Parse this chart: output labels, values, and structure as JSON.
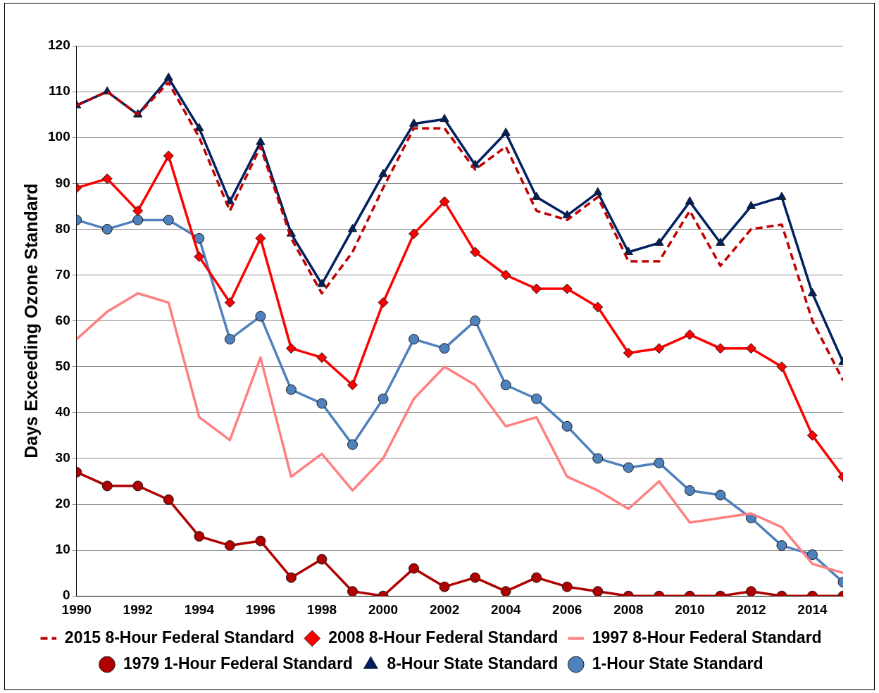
{
  "chart_data": {
    "type": "line",
    "ylabel": "Days Exceeding Ozone Standard",
    "x": [
      1990,
      1991,
      1992,
      1993,
      1994,
      1995,
      1996,
      1997,
      1998,
      1999,
      2000,
      2001,
      2002,
      2003,
      2004,
      2005,
      2006,
      2007,
      2008,
      2009,
      2010,
      2011,
      2012,
      2013,
      2014,
      2015
    ],
    "xlim": [
      1990,
      2015
    ],
    "xticks": [
      1990,
      1992,
      1994,
      1996,
      1998,
      2000,
      2002,
      2004,
      2006,
      2008,
      2010,
      2012,
      2014
    ],
    "ylim": [
      0,
      120
    ],
    "yticks": [
      0,
      10,
      20,
      30,
      40,
      50,
      60,
      70,
      80,
      90,
      100,
      110,
      120
    ],
    "grid": "y",
    "legend": "bottom",
    "series": [
      {
        "name": "2015 8-Hour Federal Standard",
        "color": "#c00000",
        "marker": "none",
        "line_style": "dashed",
        "values": [
          107,
          110,
          105,
          112,
          100,
          84,
          98,
          78,
          66,
          75,
          89,
          102,
          102,
          93,
          98,
          84,
          82,
          87,
          73,
          73,
          84,
          72,
          80,
          81,
          60,
          47
        ]
      },
      {
        "name": "2008 8-Hour Federal Standard",
        "color": "#ff0000",
        "marker": "diamond",
        "line_style": "solid",
        "values": [
          89,
          91,
          84,
          96,
          74,
          64,
          78,
          54,
          52,
          46,
          64,
          79,
          86,
          75,
          70,
          67,
          67,
          63,
          53,
          54,
          57,
          54,
          54,
          50,
          35,
          26
        ]
      },
      {
        "name": "1997 8-Hour Federal Standard",
        "color": "#ff8080",
        "marker": "none",
        "line_style": "solid",
        "values": [
          56,
          62,
          66,
          64,
          39,
          34,
          52,
          26,
          31,
          23,
          30,
          43,
          50,
          46,
          37,
          39,
          26,
          23,
          19,
          25,
          16,
          17,
          18,
          15,
          7,
          5
        ]
      },
      {
        "name": "1979 1-Hour Federal Standard",
        "color": "#b00000",
        "marker": "circle",
        "line_style": "solid",
        "values": [
          27,
          24,
          24,
          21,
          13,
          11,
          12,
          4,
          8,
          1,
          0,
          6,
          2,
          4,
          1,
          4,
          2,
          1,
          0,
          0,
          0,
          0,
          1,
          0,
          0,
          0
        ]
      },
      {
        "name": "8-Hour State Standard",
        "color": "#002060",
        "marker": "triangle",
        "line_style": "solid",
        "values": [
          107,
          110,
          105,
          113,
          102,
          86,
          99,
          79,
          68,
          80,
          92,
          103,
          104,
          94,
          101,
          87,
          83,
          88,
          75,
          77,
          86,
          77,
          85,
          87,
          66,
          51
        ]
      },
      {
        "name": "1-Hour State Standard",
        "color": "#4f81bd",
        "marker": "circle",
        "line_style": "solid",
        "values": [
          82,
          80,
          82,
          82,
          78,
          56,
          61,
          45,
          42,
          33,
          43,
          56,
          54,
          60,
          46,
          43,
          37,
          30,
          28,
          29,
          23,
          22,
          17,
          11,
          9,
          3
        ]
      }
    ]
  }
}
